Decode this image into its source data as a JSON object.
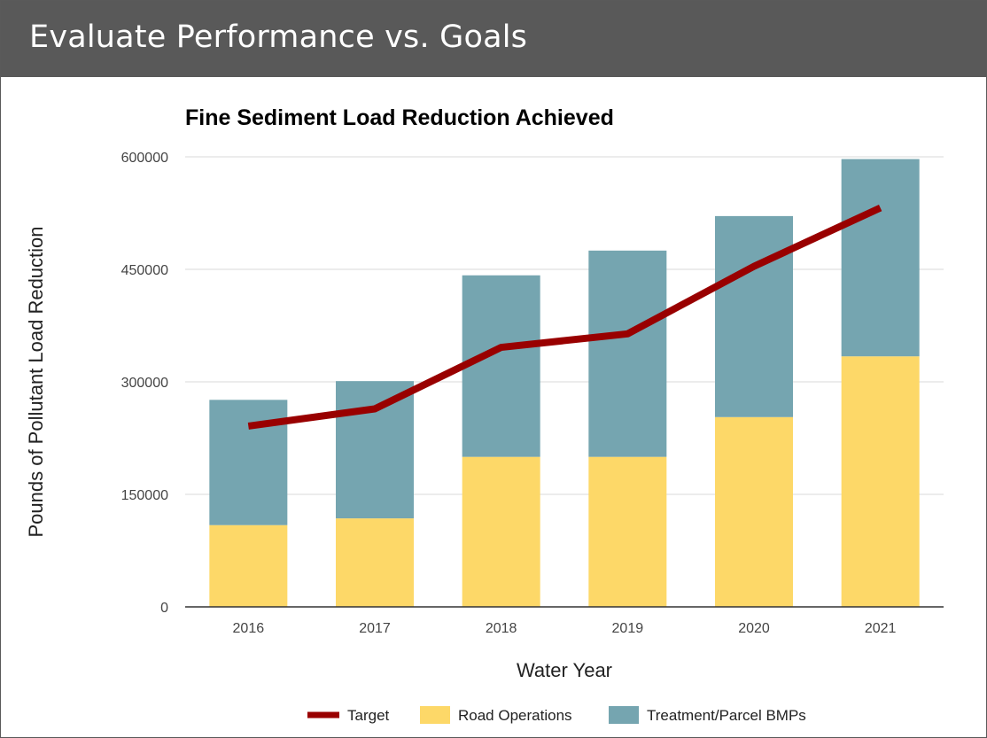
{
  "header": {
    "title": "Evaluate Performance vs. Goals"
  },
  "colors": {
    "header_bg": "#595959",
    "road_operations": "#FDD868",
    "treatment_parcel_bmps": "#75A5B0",
    "target": "#990000",
    "gridline": "#d9d9d9"
  },
  "chart_data": {
    "type": "bar",
    "stacked": true,
    "title": "Fine Sediment Load Reduction Achieved",
    "xlabel": "Water Year",
    "ylabel": "Pounds of Pollutant Load Reduction",
    "categories": [
      "2016",
      "2017",
      "2018",
      "2019",
      "2020",
      "2021"
    ],
    "ylim": [
      0,
      600000
    ],
    "yticks": [
      0,
      150000,
      300000,
      450000,
      600000
    ],
    "yticks_labels": [
      "0",
      "150000",
      "300000",
      "450000",
      "600000"
    ],
    "grid": true,
    "legend_position": "bottom",
    "series": [
      {
        "name": "Road Operations",
        "kind": "bar",
        "values": [
          109000,
          118000,
          200000,
          200000,
          253000,
          334000
        ]
      },
      {
        "name": "Treatment/Parcel BMPs",
        "kind": "bar",
        "values": [
          167000,
          183000,
          242000,
          275000,
          268000,
          263000
        ]
      },
      {
        "name": "Target",
        "kind": "line",
        "values": [
          241000,
          264000,
          346000,
          364000,
          454000,
          532000
        ]
      }
    ],
    "legend": [
      "Target",
      "Road Operations",
      "Treatment/Parcel BMPs"
    ]
  }
}
